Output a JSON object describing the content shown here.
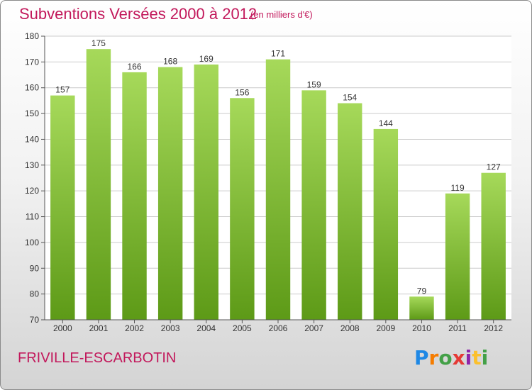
{
  "header": {
    "title": "Subventions Versées 2000 à 2012",
    "unit": "(en milliers d'€)"
  },
  "footer": {
    "commune": "FRIVILLE-ESCARBOTIN",
    "brand": [
      "P",
      "r",
      "o",
      "x",
      "i",
      "t",
      "i"
    ]
  },
  "colors": {
    "bar_top": "#a6d95a",
    "bar_bottom": "#5d9a17",
    "title": "#c2185b",
    "grid": "#cccccc",
    "axis": "#555555"
  },
  "chart_data": {
    "type": "bar",
    "title": "Subventions Versées 2000 à 2012",
    "subtitle": "(en milliers d'€)",
    "categories": [
      "2000",
      "2001",
      "2002",
      "2003",
      "2004",
      "2005",
      "2006",
      "2007",
      "2008",
      "2009",
      "2010",
      "2011",
      "2012"
    ],
    "values": [
      157,
      175,
      166,
      168,
      169,
      156,
      171,
      159,
      154,
      144,
      79,
      119,
      127
    ],
    "data_labels": [
      "157",
      "175",
      "166",
      "168",
      "169",
      "156",
      "171",
      "159",
      "154",
      "144",
      "79",
      "119",
      "127"
    ],
    "ylim": [
      70,
      180
    ],
    "yticks": [
      70,
      80,
      90,
      100,
      110,
      120,
      130,
      140,
      150,
      160,
      170,
      180
    ],
    "ytick_labels": [
      "70",
      "80",
      "90",
      "100",
      "110",
      "120",
      "130",
      "140",
      "150",
      "160",
      "170",
      "180"
    ],
    "grid": true,
    "xlabel": "",
    "ylabel": ""
  }
}
